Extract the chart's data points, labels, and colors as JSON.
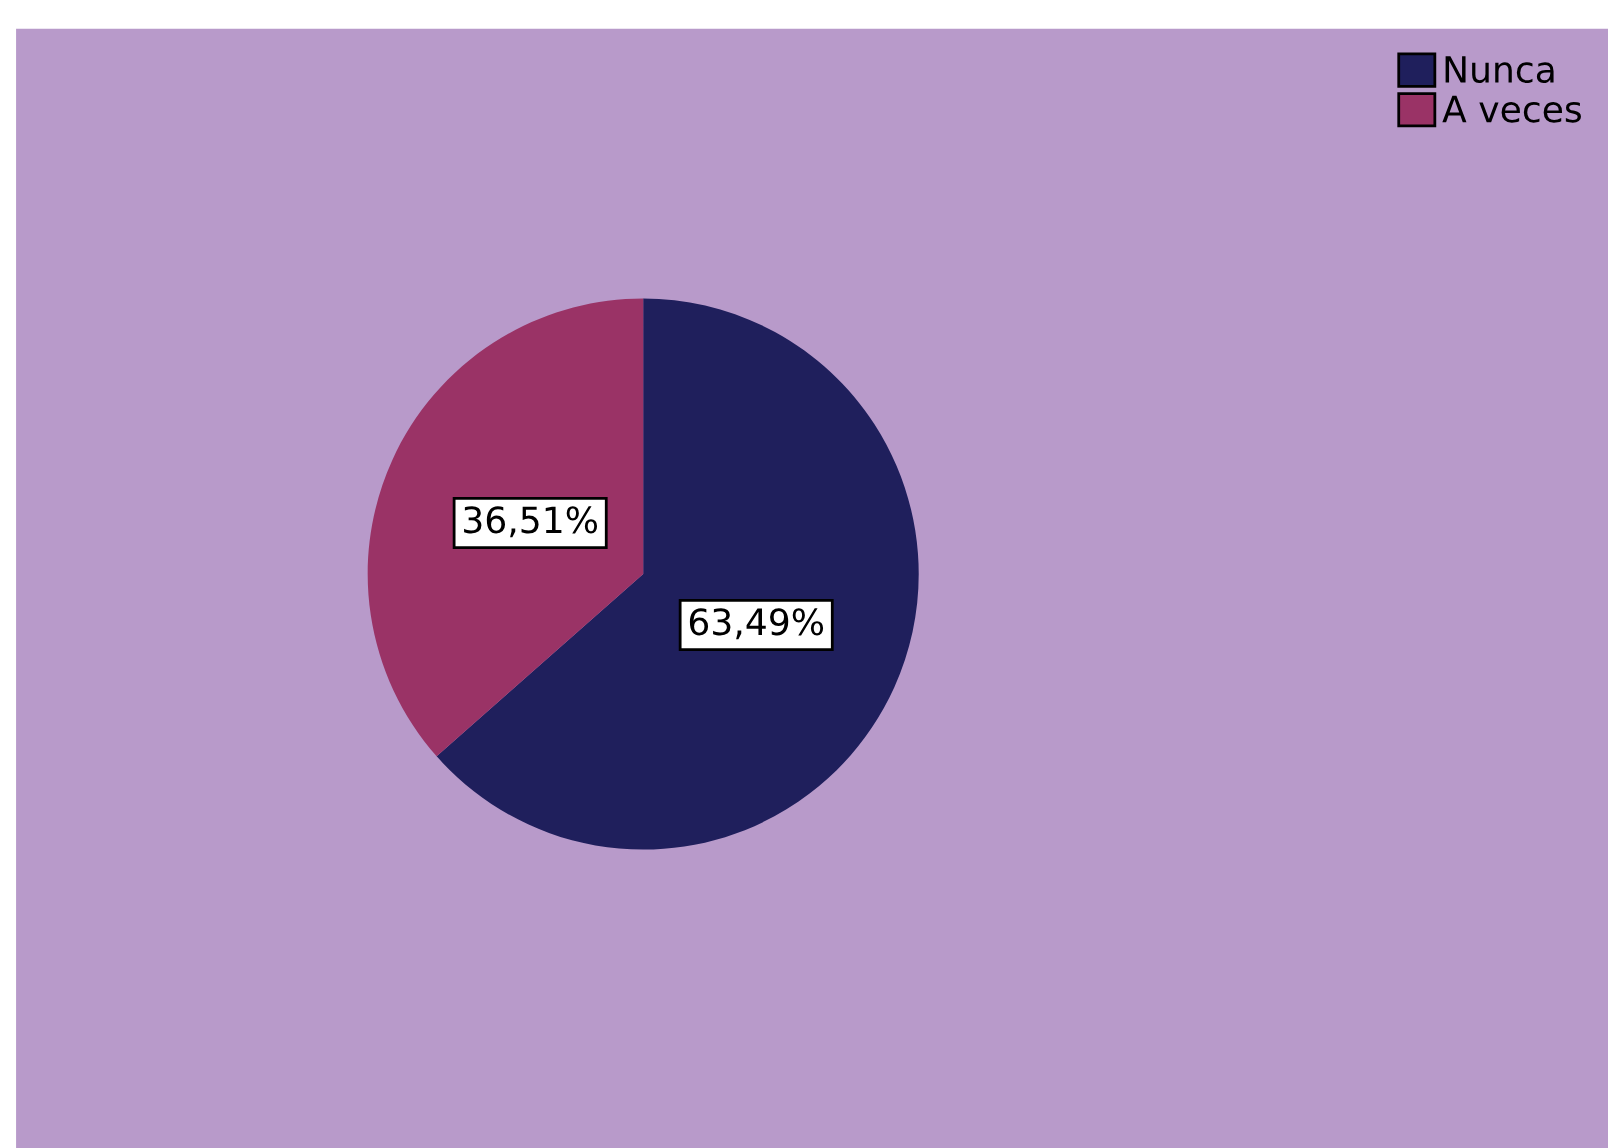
{
  "chart_data": {
    "type": "pie",
    "categories": [
      "Nunca",
      "A veces"
    ],
    "values": [
      63.49,
      36.51
    ],
    "value_labels": [
      "63,49%",
      "36,51%"
    ],
    "colors": [
      "#1f1f5c",
      "#9a3366"
    ],
    "legend": "top right"
  }
}
